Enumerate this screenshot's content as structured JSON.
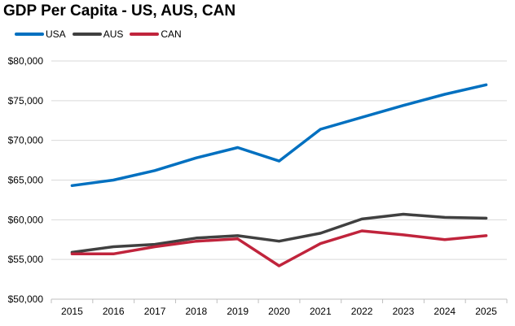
{
  "title": "GDP Per Capita - US, AUS, CAN",
  "chart_data": {
    "type": "line",
    "title": "GDP Per Capita - US, AUS, CAN",
    "xlabel": "",
    "ylabel": "",
    "categories": [
      "2015",
      "2016",
      "2017",
      "2018",
      "2019",
      "2020",
      "2021",
      "2022",
      "2023",
      "2024",
      "2025"
    ],
    "ylim": [
      50000,
      80000
    ],
    "yticks": [
      50000,
      55000,
      60000,
      65000,
      70000,
      75000,
      80000
    ],
    "ytick_labels": [
      "$50,000",
      "$55,000",
      "$60,000",
      "$65,000",
      "$70,000",
      "$75,000",
      "$80,000"
    ],
    "grid": "horizontal",
    "legend_position": "top-left",
    "series": [
      {
        "name": "USA",
        "color": "#0070C0",
        "values": [
          64300,
          65000,
          66200,
          67800,
          69100,
          67400,
          71400,
          72900,
          74400,
          75800,
          77000
        ]
      },
      {
        "name": "AUS",
        "color": "#404040",
        "values": [
          55900,
          56600,
          56900,
          57700,
          58000,
          57300,
          58300,
          60100,
          60700,
          60300,
          60200
        ]
      },
      {
        "name": "CAN",
        "color": "#C0243C",
        "values": [
          55700,
          55700,
          56600,
          57300,
          57600,
          54200,
          57000,
          58600,
          58100,
          57500,
          58000
        ]
      }
    ]
  }
}
